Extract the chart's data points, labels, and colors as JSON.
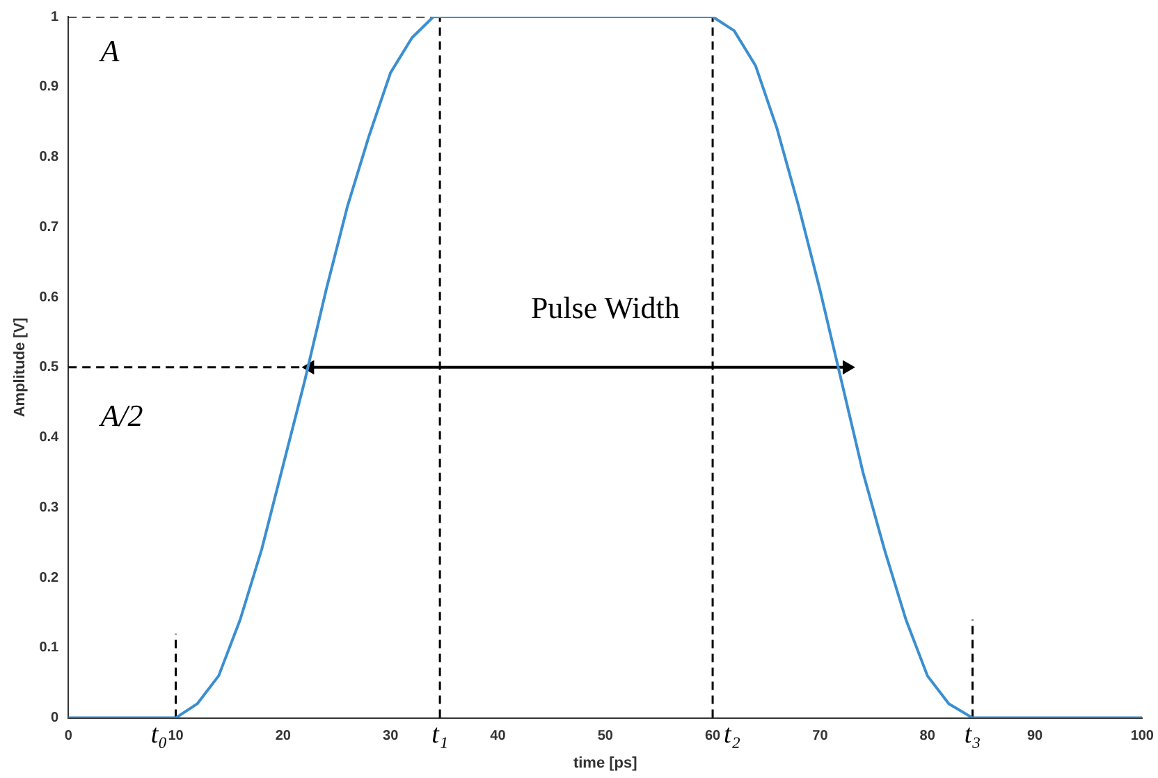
{
  "chart_data": {
    "type": "line",
    "xlabel": "time [ps]",
    "ylabel": "Amplitude [V]",
    "xlim": [
      0,
      100
    ],
    "xticks": [
      0,
      10,
      20,
      30,
      40,
      50,
      60,
      70,
      80,
      90,
      100
    ],
    "ylim": [
      0,
      1
    ],
    "yticks": [
      0,
      0.1,
      0.2,
      0.3,
      0.4,
      0.5,
      0.6,
      0.7,
      0.8,
      0.9,
      1
    ],
    "grid": false,
    "legend": false,
    "line_style": "solid",
    "series": [
      {
        "color": "#3b8fd0",
        "x": [
          0,
          10,
          12,
          14,
          16,
          18,
          20,
          22,
          24,
          26,
          28,
          30,
          32,
          34,
          34.6,
          60,
          62,
          64,
          66,
          68,
          70,
          72,
          74,
          76,
          78,
          80,
          82,
          84.2,
          100
        ],
        "values": [
          0,
          0,
          0.02,
          0.06,
          0.14,
          0.24,
          0.36,
          0.48,
          0.61,
          0.73,
          0.83,
          0.92,
          0.97,
          1,
          1,
          1,
          0.98,
          0.93,
          0.84,
          0.73,
          0.61,
          0.48,
          0.35,
          0.24,
          0.14,
          0.06,
          0.02,
          0,
          0
        ]
      },
      {
        "color": "#000000",
        "line_style": "dashed",
        "x": [
          0,
          34.6
        ],
        "values": [
          1,
          1
        ]
      },
      {
        "color": "#000000",
        "line_style": "dashed",
        "x": [
          0,
          22.5
        ],
        "values": [
          0.5,
          0.5
        ]
      },
      {
        "color": "#000000",
        "line_style": "dashed",
        "x": [
          10,
          10
        ],
        "values": [
          0,
          0.12
        ]
      },
      {
        "color": "#000000",
        "line_style": "dashed",
        "x": [
          34.6,
          34.6
        ],
        "values": [
          0,
          1
        ]
      },
      {
        "color": "#000000",
        "line_style": "dashed",
        "x": [
          60,
          60
        ],
        "values": [
          0,
          1
        ]
      },
      {
        "color": "#000000",
        "line_style": "dashed",
        "x": [
          84.2,
          84.2
        ],
        "values": [
          0,
          0.14
        ]
      },
      {
        "color": "#000000",
        "marker": "triangle",
        "x": [
          22.5,
          72.5
        ],
        "values": [
          0.5,
          0.5
        ]
      }
    ],
    "annotations": [
      "A",
      "A/2",
      "Pulse Width",
      {
        "text": "t₀",
        "x": 10,
        "y": 0
      },
      {
        "text": "t₁",
        "x": 34.6,
        "y": 0
      },
      {
        "text": "t₂",
        "x": 60,
        "y": 0
      },
      {
        "text": "t₃",
        "x": 84.2,
        "y": 0
      }
    ]
  }
}
